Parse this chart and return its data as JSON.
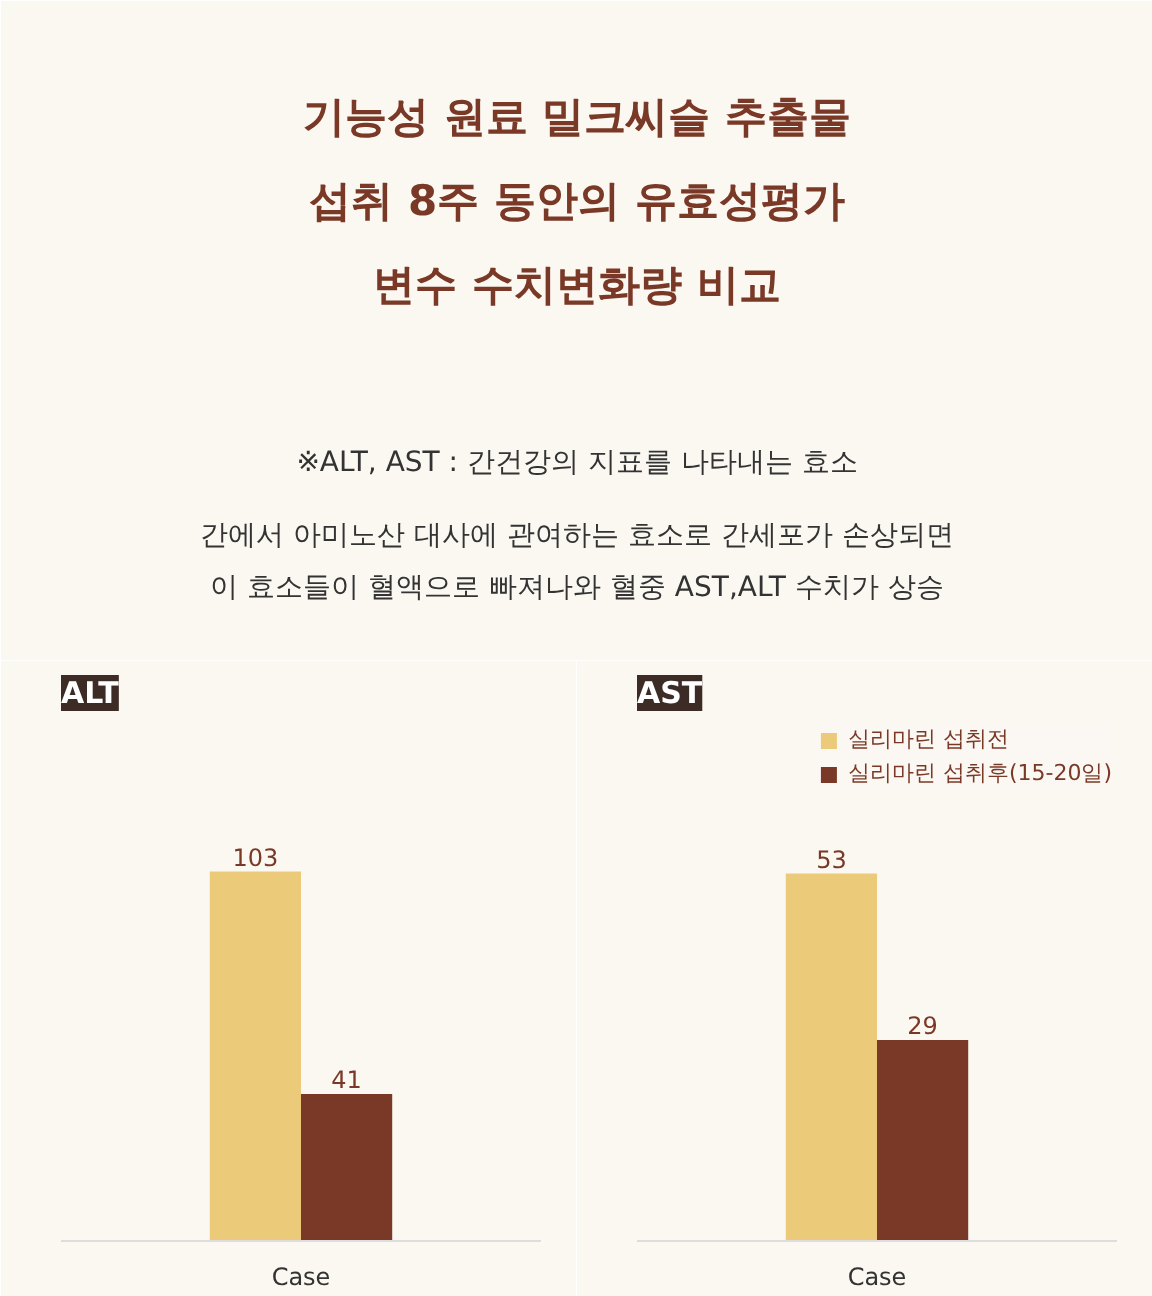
{
  "chart_data": [
    {
      "type": "other",
      "title": "기능성 원료 밀크씨슬 추출물\n섭취 8주 동안의 유효성평가\n변수 수치변화량 비교",
      "annotations": [
        "※ALT, AST : 간건강의 지표를 나타내는 효소",
        "간에서 아미노산 대사에 관여하는 효소로 간세포가 손상되면\n이 효소들이 혈액으로 빠져나와 혈중 AST,ALT 수치가 상승"
      ]
    },
    {
      "type": "bar",
      "title": "ALT",
      "categories": [
        "Case"
      ],
      "ylim": [
        0,
        145
      ],
      "data_labels": true,
      "tick_labels": "x",
      "series": [
        {
          "color": "#ebcb79",
          "values": [
            103
          ]
        },
        {
          "color": "#7a3826",
          "values": [
            41
          ]
        }
      ]
    },
    {
      "type": "bar",
      "title": "AST",
      "categories": [
        "Case"
      ],
      "ylim": [
        0,
        75
      ],
      "data_labels": true,
      "tick_labels": "x",
      "legend": "top right",
      "series": [
        {
          "name": "실리마린 섭취전",
          "color": "#ebcb79",
          "values": [
            53
          ]
        },
        {
          "name": "실리마린 섭취후(15-20일)",
          "color": "#7a3826",
          "values": [
            29
          ]
        }
      ]
    }
  ]
}
